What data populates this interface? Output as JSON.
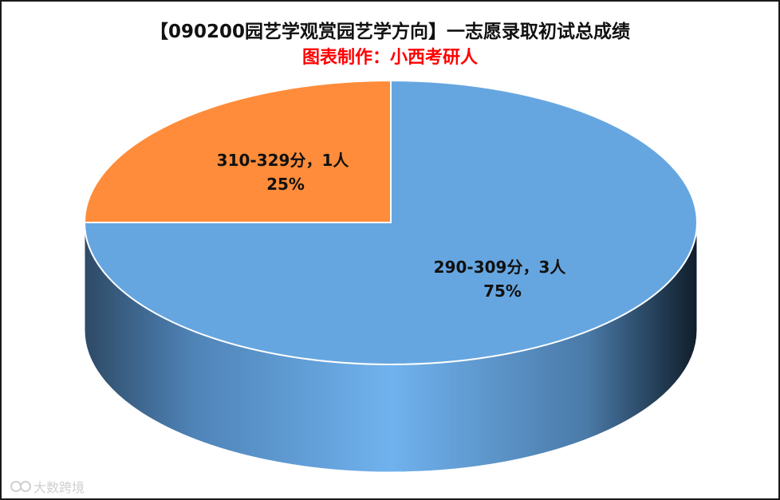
{
  "chart_data": {
    "type": "pie",
    "title": "【090200园艺学观赏园艺学方向】一志愿录取初试总成绩",
    "subtitle": "图表制作：小西考研人",
    "slices": [
      {
        "category": "290-309分",
        "count": 3,
        "count_label": "3人",
        "percent": 75,
        "percent_label": "75%",
        "color": "#66a6e0"
      },
      {
        "category": "310-329分",
        "count": 1,
        "count_label": "1人",
        "percent": 25,
        "percent_label": "25%",
        "color": "#ff8c3a"
      }
    ],
    "style": "3d"
  },
  "watermark": {
    "text": "大数跨境"
  }
}
